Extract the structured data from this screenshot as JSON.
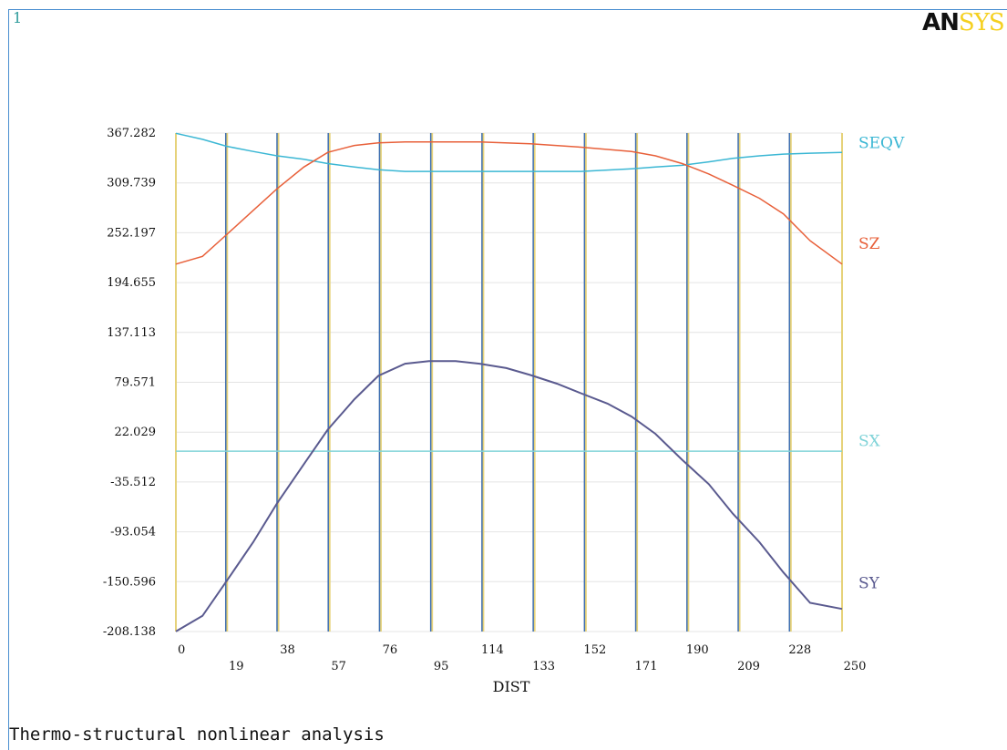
{
  "window_number": "1",
  "logo": {
    "part1": "AN",
    "part2": "SYS"
  },
  "footer_text": "Thermo-structural nonlinear analysis",
  "colors": {
    "SEQV": "#3bb7d4",
    "SZ": "#e8603a",
    "SX": "#7fd3d8",
    "SY": "#5a5a8f",
    "grid_blue": "#3f6fb0",
    "grid_yellow": "#e6d27a"
  },
  "chart_data": {
    "type": "line",
    "xlabel": "DIST",
    "xlim": [
      0,
      250
    ],
    "ylim": [
      -208.138,
      367.282
    ],
    "y_ticks": [
      "367.282",
      "309.739",
      "252.197",
      "194.655",
      "137.113",
      "79.571",
      "22.029",
      "-35.512",
      "-93.054",
      "-150.596",
      "-208.138"
    ],
    "x_ticks": [
      "0",
      "19",
      "38",
      "57",
      "76",
      "95",
      "114",
      "133",
      "152",
      "171",
      "190",
      "209",
      "228",
      "250"
    ],
    "series": [
      {
        "name": "SEQV",
        "x": [
          0,
          10,
          19,
          29,
          38,
          48,
          57,
          67,
          76,
          86,
          95,
          114,
          133,
          152,
          171,
          180,
          190,
          200,
          209,
          219,
          228,
          238,
          250
        ],
        "y": [
          367,
          360,
          352,
          346,
          341,
          337,
          332,
          328,
          325,
          323,
          323,
          323,
          323,
          323,
          326,
          328,
          330,
          334,
          338,
          341,
          343,
          344,
          345
        ]
      },
      {
        "name": "SZ",
        "x": [
          0,
          10,
          19,
          29,
          38,
          48,
          57,
          67,
          76,
          86,
          95,
          114,
          133,
          152,
          171,
          180,
          190,
          200,
          209,
          219,
          228,
          238,
          250
        ],
        "y": [
          216,
          225,
          250,
          278,
          303,
          328,
          345,
          353,
          356,
          357,
          357,
          357,
          355,
          351,
          346,
          341,
          332,
          320,
          307,
          292,
          274,
          243,
          216
        ]
      },
      {
        "name": "SX",
        "x": [
          0,
          250
        ],
        "y": [
          0,
          0
        ]
      },
      {
        "name": "SY",
        "x": [
          0,
          10,
          19,
          29,
          38,
          48,
          57,
          67,
          76,
          86,
          95,
          105,
          114,
          124,
          133,
          143,
          152,
          162,
          171,
          180,
          190,
          200,
          209,
          219,
          228,
          238,
          250
        ],
        "y": [
          -208,
          -190,
          -150,
          -105,
          -60,
          -15,
          25,
          60,
          87,
          101,
          104,
          104,
          101,
          96,
          88,
          78,
          67,
          55,
          40,
          20,
          -10,
          -38,
          -72,
          -105,
          -140,
          -175,
          -182
        ]
      }
    ],
    "labels": [
      {
        "name": "SEQV",
        "text": "SEQV",
        "y": 356
      },
      {
        "name": "SZ",
        "text": "SZ",
        "y": 240
      },
      {
        "name": "SX",
        "text": "SX",
        "y": 12
      },
      {
        "name": "SY",
        "text": "SY",
        "y": -152
      }
    ]
  }
}
